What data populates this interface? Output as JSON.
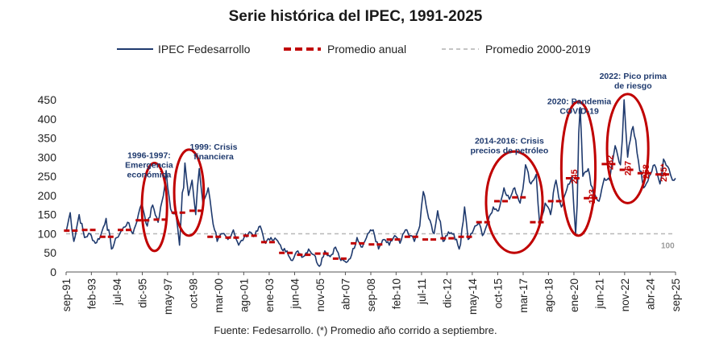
{
  "chart_data": {
    "type": "line",
    "title": "Serie histórica del IPEC, 1991-2025",
    "source": "Fuente: Fedesarrollo. (*) Promedio año corrido a septiembre.",
    "ylim": [
      0,
      450
    ],
    "yticks": [
      0,
      50,
      100,
      150,
      200,
      250,
      300,
      350,
      400,
      450
    ],
    "xlim": [
      1991.67,
      2025.67
    ],
    "xticks": [
      {
        "label": "sep-91",
        "x": 1991.67
      },
      {
        "label": "feb-93",
        "x": 1993.08
      },
      {
        "label": "jul-94",
        "x": 1994.5
      },
      {
        "label": "dic-95",
        "x": 1995.92
      },
      {
        "label": "may-97",
        "x": 1997.33
      },
      {
        "label": "oct-98",
        "x": 1998.75
      },
      {
        "label": "mar-00",
        "x": 2000.17
      },
      {
        "label": "ago-01",
        "x": 2001.58
      },
      {
        "label": "ene-03",
        "x": 2003.0
      },
      {
        "label": "jun-04",
        "x": 2004.42
      },
      {
        "label": "nov-05",
        "x": 2005.83
      },
      {
        "label": "abr-07",
        "x": 2007.25
      },
      {
        "label": "sep-08",
        "x": 2008.67
      },
      {
        "label": "feb-10",
        "x": 2010.08
      },
      {
        "label": "jul-11",
        "x": 2011.5
      },
      {
        "label": "dic-12",
        "x": 2012.92
      },
      {
        "label": "may-14",
        "x": 2014.33
      },
      {
        "label": "oct-15",
        "x": 2015.75
      },
      {
        "label": "mar-17",
        "x": 2017.17
      },
      {
        "label": "ago-18",
        "x": 2018.58
      },
      {
        "label": "ene-20",
        "x": 2020.0
      },
      {
        "label": "jun-21",
        "x": 2021.42
      },
      {
        "label": "nov-22",
        "x": 2022.83
      },
      {
        "label": "abr-24",
        "x": 2024.25
      },
      {
        "label": "sep-25",
        "x": 2025.67
      }
    ],
    "legend": [
      "IPEC Fedesarrollo",
      "Promedio anual",
      "Promedio 2000-2019"
    ],
    "reference_line": {
      "name": "Promedio 2000-2019",
      "value": 100,
      "label": "100"
    },
    "monthly": {
      "name": "IPEC Fedesarrollo",
      "anchors": [
        [
          1991.67,
          105
        ],
        [
          1991.9,
          155
        ],
        [
          1992.1,
          80
        ],
        [
          1992.4,
          150
        ],
        [
          1992.7,
          90
        ],
        [
          1993.0,
          100
        ],
        [
          1993.3,
          75
        ],
        [
          1993.6,
          95
        ],
        [
          1993.9,
          140
        ],
        [
          1994.2,
          60
        ],
        [
          1994.5,
          90
        ],
        [
          1994.8,
          110
        ],
        [
          1995.1,
          130
        ],
        [
          1995.4,
          100
        ],
        [
          1995.7,
          150
        ],
        [
          1995.9,
          180
        ],
        [
          1996.2,
          120
        ],
        [
          1996.5,
          175
        ],
        [
          1996.8,
          130
        ],
        [
          1997.1,
          200
        ],
        [
          1997.25,
          265
        ],
        [
          1997.5,
          165
        ],
        [
          1997.8,
          150
        ],
        [
          1998.0,
          70
        ],
        [
          1998.3,
          285
        ],
        [
          1998.5,
          200
        ],
        [
          1998.7,
          240
        ],
        [
          1998.9,
          150
        ],
        [
          1999.1,
          270
        ],
        [
          1999.3,
          180
        ],
        [
          1999.6,
          220
        ],
        [
          1999.8,
          150
        ],
        [
          2000.1,
          80
        ],
        [
          2000.4,
          100
        ],
        [
          2000.7,
          85
        ],
        [
          2001.0,
          110
        ],
        [
          2001.3,
          70
        ],
        [
          2001.6,
          90
        ],
        [
          2001.9,
          105
        ],
        [
          2002.2,
          95
        ],
        [
          2002.5,
          120
        ],
        [
          2002.8,
          75
        ],
        [
          2003.1,
          90
        ],
        [
          2003.4,
          85
        ],
        [
          2003.7,
          60
        ],
        [
          2004.0,
          55
        ],
        [
          2004.3,
          30
        ],
        [
          2004.6,
          55
        ],
        [
          2004.9,
          40
        ],
        [
          2005.2,
          60
        ],
        [
          2005.5,
          45
        ],
        [
          2005.8,
          15
        ],
        [
          2006.1,
          55
        ],
        [
          2006.4,
          40
        ],
        [
          2006.7,
          65
        ],
        [
          2007.0,
          30
        ],
        [
          2007.3,
          25
        ],
        [
          2007.6,
          45
        ],
        [
          2007.9,
          90
        ],
        [
          2008.2,
          65
        ],
        [
          2008.5,
          100
        ],
        [
          2008.8,
          110
        ],
        [
          2009.1,
          60
        ],
        [
          2009.4,
          85
        ],
        [
          2009.7,
          70
        ],
        [
          2010.0,
          95
        ],
        [
          2010.3,
          75
        ],
        [
          2010.6,
          110
        ],
        [
          2010.9,
          95
        ],
        [
          2011.1,
          80
        ],
        [
          2011.4,
          120
        ],
        [
          2011.6,
          210
        ],
        [
          2011.9,
          140
        ],
        [
          2012.2,
          100
        ],
        [
          2012.4,
          160
        ],
        [
          2012.7,
          80
        ],
        [
          2013.0,
          105
        ],
        [
          2013.3,
          100
        ],
        [
          2013.6,
          60
        ],
        [
          2013.9,
          170
        ],
        [
          2014.1,
          85
        ],
        [
          2014.4,
          110
        ],
        [
          2014.7,
          130
        ],
        [
          2014.9,
          95
        ],
        [
          2015.2,
          130
        ],
        [
          2015.5,
          170
        ],
        [
          2015.8,
          160
        ],
        [
          2016.1,
          220
        ],
        [
          2016.4,
          190
        ],
        [
          2016.7,
          220
        ],
        [
          2017.0,
          180
        ],
        [
          2017.3,
          280
        ],
        [
          2017.6,
          230
        ],
        [
          2017.9,
          255
        ],
        [
          2018.1,
          120
        ],
        [
          2018.4,
          180
        ],
        [
          2018.7,
          150
        ],
        [
          2019.0,
          240
        ],
        [
          2019.3,
          170
        ],
        [
          2019.6,
          215
        ],
        [
          2019.9,
          250
        ],
        [
          2020.1,
          100
        ],
        [
          2020.35,
          430
        ],
        [
          2020.5,
          250
        ],
        [
          2020.8,
          270
        ],
        [
          2021.1,
          200
        ],
        [
          2021.4,
          185
        ],
        [
          2021.7,
          245
        ],
        [
          2022.0,
          240
        ],
        [
          2022.3,
          330
        ],
        [
          2022.6,
          280
        ],
        [
          2022.8,
          450
        ],
        [
          2023.0,
          300
        ],
        [
          2023.3,
          380
        ],
        [
          2023.6,
          290
        ],
        [
          2023.9,
          220
        ],
        [
          2024.2,
          250
        ],
        [
          2024.5,
          280
        ],
        [
          2024.8,
          230
        ],
        [
          2025.0,
          295
        ],
        [
          2025.3,
          270
        ],
        [
          2025.5,
          240
        ],
        [
          2025.67,
          245
        ]
      ]
    },
    "annual_average": {
      "name": "Promedio anual",
      "values": [
        [
          1992,
          108
        ],
        [
          1993,
          110
        ],
        [
          1994,
          92
        ],
        [
          1995,
          110
        ],
        [
          1996,
          135
        ],
        [
          1997,
          137
        ],
        [
          1998,
          155
        ],
        [
          1999,
          160
        ],
        [
          2000,
          92
        ],
        [
          2001,
          90
        ],
        [
          2002,
          95
        ],
        [
          2003,
          78
        ],
        [
          2004,
          50
        ],
        [
          2005,
          45
        ],
        [
          2006,
          48
        ],
        [
          2007,
          35
        ],
        [
          2008,
          75
        ],
        [
          2009,
          72
        ],
        [
          2010,
          85
        ],
        [
          2011,
          92
        ],
        [
          2012,
          85
        ],
        [
          2013,
          88
        ],
        [
          2014,
          92
        ],
        [
          2015,
          130
        ],
        [
          2016,
          185
        ],
        [
          2017,
          195
        ],
        [
          2018,
          130
        ],
        [
          2019,
          185
        ],
        [
          2020,
          245
        ],
        [
          2021,
          193
        ],
        [
          2022,
          282
        ],
        [
          2023,
          267
        ],
        [
          2024,
          258
        ],
        [
          2025,
          255
        ]
      ],
      "labels": [
        {
          "year": 2020,
          "text": "245"
        },
        {
          "year": 2021,
          "text": "193"
        },
        {
          "year": 2022,
          "text": "282"
        },
        {
          "year": 2023,
          "text": "267"
        },
        {
          "year": 2024,
          "text": "258"
        },
        {
          "year": 2025,
          "text": "255*"
        }
      ]
    },
    "annotations": [
      {
        "id": "ann-1996",
        "lines": [
          "1996-1997:",
          "Emergencia",
          "económica"
        ],
        "x": 1996.3,
        "y": 298,
        "ellipse": {
          "x0": 1995.9,
          "x1": 1997.3,
          "y0": 55,
          "y1": 285
        }
      },
      {
        "id": "ann-1999",
        "lines": [
          "1999: Crisis",
          "financiera"
        ],
        "x": 1999.9,
        "y": 320,
        "ellipse": {
          "x0": 1997.7,
          "x1": 1999.35,
          "y0": 95,
          "y1": 320
        }
      },
      {
        "id": "ann-2014",
        "lines": [
          "2014-2016: Crisis",
          "precios de petróleo"
        ],
        "x": 2016.4,
        "y": 335,
        "ellipse": {
          "x0": 2015.1,
          "x1": 2018.25,
          "y0": 50,
          "y1": 315
        }
      },
      {
        "id": "ann-2020",
        "lines": [
          "2020: Pandemia",
          "COVID-19"
        ],
        "x": 2020.3,
        "y": 438,
        "ellipse": {
          "x0": 2019.3,
          "x1": 2021.2,
          "y0": 95,
          "y1": 445
        }
      },
      {
        "id": "ann-2022",
        "lines": [
          "2022: Pico prima",
          "de riesgo"
        ],
        "x": 2023.3,
        "y": 505,
        "ellipse": {
          "x0": 2021.85,
          "x1": 2024.15,
          "y0": 180,
          "y1": 465
        }
      }
    ]
  }
}
